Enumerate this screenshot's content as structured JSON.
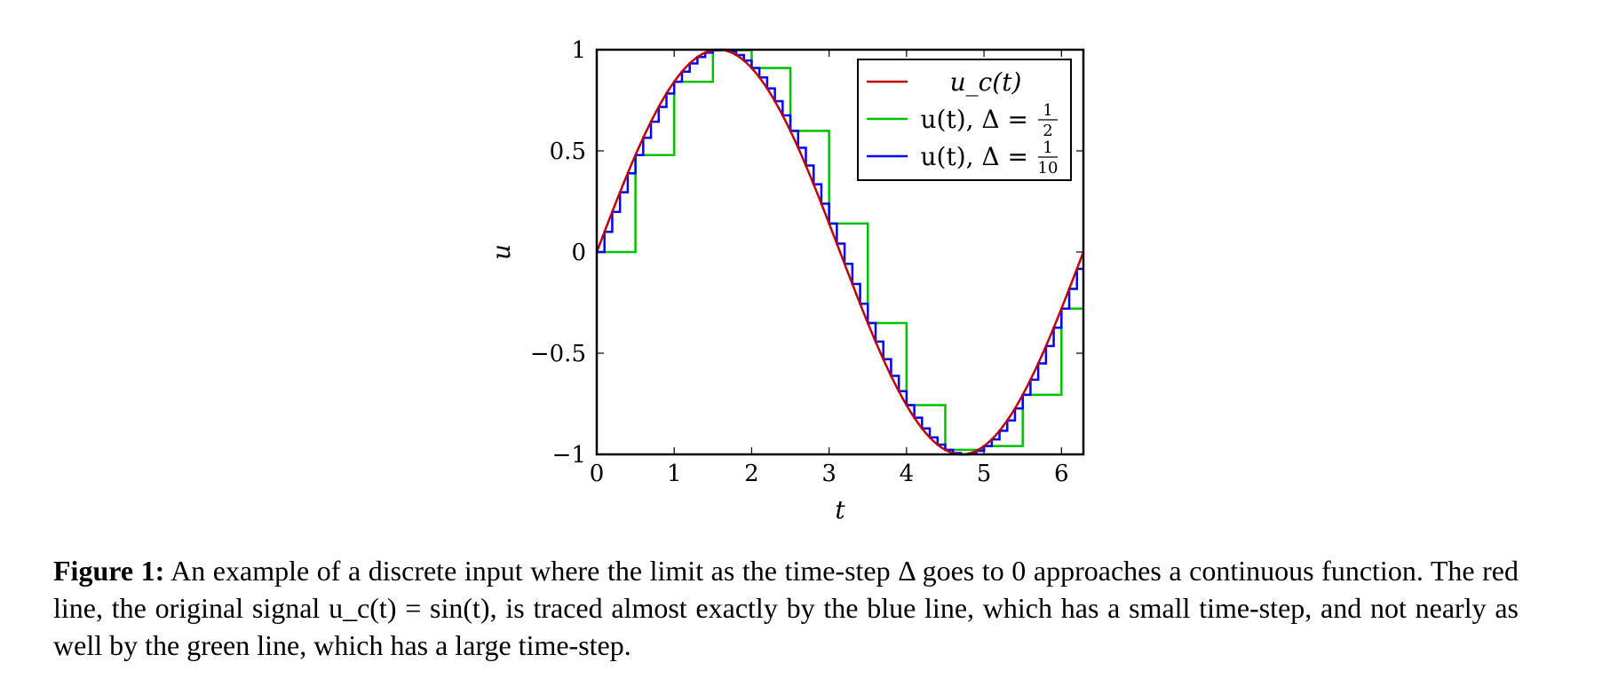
{
  "chart_data": {
    "type": "line",
    "xlabel": "t",
    "ylabel": "u",
    "xlim": [
      0,
      6.2832
    ],
    "ylim": [
      -1,
      1
    ],
    "xticks": [
      "0",
      "1",
      "2",
      "3",
      "4",
      "5",
      "6"
    ],
    "yticks": [
      "−1",
      "−0.5",
      "0",
      "0.5",
      "1"
    ],
    "legend_position": "top-right",
    "series": [
      {
        "name": "u_c(t)",
        "legend": "u_c(t)",
        "kind": "continuous",
        "function": "sin(t)",
        "color": "#c00000"
      },
      {
        "name": "u(t), Δ = 1/2",
        "legend": "u(t), Δ =",
        "frac_num": "1",
        "frac_den": "2",
        "kind": "step",
        "step": 0.5,
        "function": "sin(t)",
        "color": "#00c000"
      },
      {
        "name": "u(t), Δ = 1/10",
        "legend": "u(t), Δ =",
        "frac_num": "1",
        "frac_den": "10",
        "kind": "step",
        "step": 0.1,
        "function": "sin(t)",
        "color": "#0000ff"
      }
    ]
  },
  "caption": {
    "label": "Figure 1:",
    "text": " An example of a discrete input where the limit as the time-step Δ goes to 0 approaches a continuous function. The red line, the original signal u_c(t) = sin(t), is traced almost exactly by the blue line, which has a small time-step, and not nearly as well by the green line, which has a large time-step."
  }
}
